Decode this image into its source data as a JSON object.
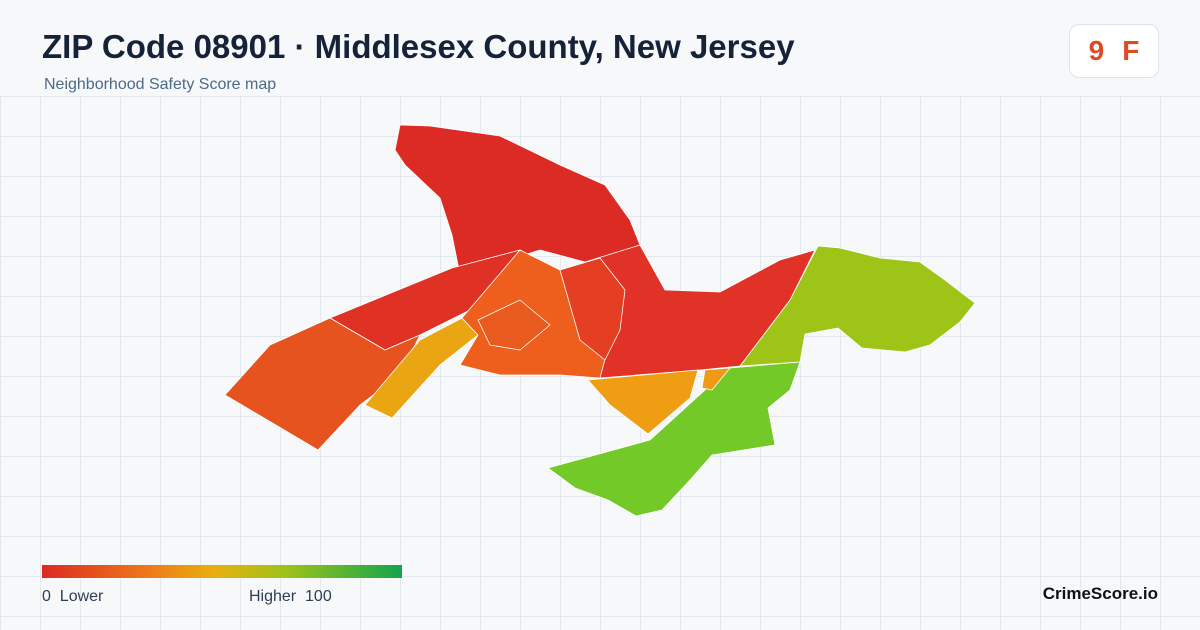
{
  "header": {
    "title": "ZIP Code 08901 · Middlesex County, New Jersey",
    "subtitle": "Neighborhood Safety Score map"
  },
  "score": {
    "value": "9",
    "grade": "F"
  },
  "legend": {
    "min": "0",
    "min_label": "Lower",
    "max_label": "Higher",
    "max": "100"
  },
  "footer": {
    "brand": "CrimeScore.io"
  }
}
